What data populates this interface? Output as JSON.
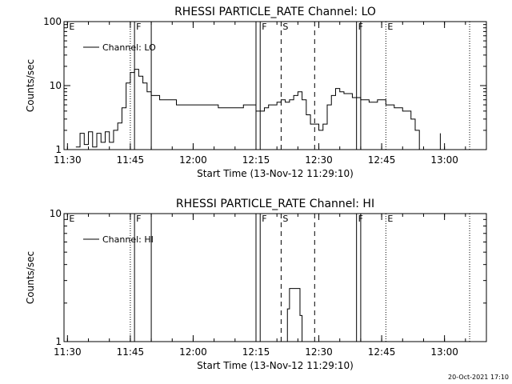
{
  "footer_timestamp": "20-Oct-2021 17:10",
  "chart_data": [
    {
      "type": "line",
      "title": "RHESSI PARTICLE_RATE Channel: LO",
      "xlabel": "Start Time (13-Nov-12 11:29:10)",
      "ylabel": "Counts/sec",
      "yscale": "log",
      "ylim": [
        1,
        100
      ],
      "xlim_minutes": [
        11.29,
        13.2
      ],
      "ytick_labels": [
        "1",
        "10",
        "100"
      ],
      "xtick_labels": [
        "11:30",
        "11:45",
        "12:00",
        "12:15",
        "12:30",
        "12:45",
        "13:00"
      ],
      "legend": {
        "label": "Channel: LO",
        "position": "top-left"
      },
      "markers": [
        {
          "label": "E",
          "time": "11:30",
          "style": "none"
        },
        {
          "label": "F",
          "time": "11:46",
          "style": "solid"
        },
        {
          "label": "F",
          "time": "12:16",
          "style": "solid"
        },
        {
          "label": "S",
          "time": "12:21",
          "style": "dashed"
        },
        {
          "label": "F",
          "time": "12:39",
          "style": "solid"
        },
        {
          "label": "E",
          "time": "12:46",
          "style": "dotted"
        }
      ],
      "extra_lines": [
        {
          "time": "11:45",
          "style": "dotted"
        },
        {
          "time": "11:50",
          "style": "solid"
        },
        {
          "time": "12:15",
          "style": "solid"
        },
        {
          "time": "12:29",
          "style": "dashed"
        },
        {
          "time": "12:40",
          "style": "solid"
        },
        {
          "time": "13:06",
          "style": "dotted"
        }
      ],
      "series": [
        {
          "name": "Channel: LO",
          "x": [
            "11:32",
            "11:33",
            "11:34",
            "11:35",
            "11:36",
            "11:37",
            "11:38",
            "11:39",
            "11:40",
            "11:41",
            "11:42",
            "11:43",
            "11:44",
            "11:45",
            "11:46",
            "11:47",
            "11:48",
            "11:49",
            "11:50",
            "11:51",
            "11:52",
            "11:54",
            "11:56",
            "11:58",
            "12:00",
            "12:02",
            "12:04",
            "12:06",
            "12:08",
            "12:10",
            "12:12",
            "12:14",
            "12:15",
            "12:16",
            "12:17",
            "12:18",
            "12:19",
            "12:20",
            "12:21",
            "12:22",
            "12:23",
            "12:24",
            "12:25",
            "12:26",
            "12:27",
            "12:28",
            "12:29",
            "12:30",
            "12:31",
            "12:32",
            "12:33",
            "12:34",
            "12:35",
            "12:36",
            "12:38",
            "12:40",
            "12:42",
            "12:44",
            "12:46",
            "12:48",
            "12:50",
            "12:52",
            "12:53",
            "12:54",
            "12:55",
            "12:58",
            "12:59"
          ],
          "y": [
            1.1,
            1.8,
            1.2,
            1.9,
            1.1,
            1.8,
            1.3,
            1.9,
            1.3,
            2.0,
            2.6,
            4.5,
            11,
            16,
            18,
            14,
            11,
            8,
            7,
            7,
            6,
            6,
            5,
            5,
            5,
            5,
            5,
            4.5,
            4.5,
            4.5,
            5,
            5,
            4,
            4,
            4.5,
            5,
            5,
            5.5,
            6,
            5.5,
            6,
            7,
            8,
            6,
            3.5,
            2.5,
            2.5,
            2,
            2.5,
            5,
            7,
            9,
            8,
            7.5,
            6.5,
            6,
            5.5,
            6,
            5,
            4.5,
            4,
            3,
            2,
            1,
            1,
            1,
            1.8
          ]
        }
      ]
    },
    {
      "type": "line",
      "title": "RHESSI PARTICLE_RATE Channel: HI",
      "xlabel": "Start Time (13-Nov-12 11:29:10)",
      "ylabel": "Counts/sec",
      "yscale": "log",
      "ylim": [
        1,
        10
      ],
      "xlim_minutes": [
        11.29,
        13.2
      ],
      "ytick_labels": [
        "1",
        "10"
      ],
      "xtick_labels": [
        "11:30",
        "11:45",
        "12:00",
        "12:15",
        "12:30",
        "12:45",
        "13:00"
      ],
      "legend": {
        "label": "Channel: HI",
        "position": "top-left"
      },
      "markers": [
        {
          "label": "E",
          "time": "11:30",
          "style": "none"
        },
        {
          "label": "F",
          "time": "11:46",
          "style": "solid"
        },
        {
          "label": "F",
          "time": "12:16",
          "style": "solid"
        },
        {
          "label": "S",
          "time": "12:21",
          "style": "dashed"
        },
        {
          "label": "F",
          "time": "12:39",
          "style": "solid"
        },
        {
          "label": "E",
          "time": "12:46",
          "style": "dotted"
        }
      ],
      "extra_lines": [
        {
          "time": "11:45",
          "style": "dotted"
        },
        {
          "time": "11:50",
          "style": "solid"
        },
        {
          "time": "12:15",
          "style": "solid"
        },
        {
          "time": "12:29",
          "style": "dashed"
        },
        {
          "time": "12:40",
          "style": "solid"
        },
        {
          "time": "13:06",
          "style": "dotted"
        }
      ],
      "series": [
        {
          "name": "Channel: HI",
          "x": [
            "12:22",
            "12:22.5",
            "12:23",
            "12:24",
            "12:25",
            "12:25.5",
            "12:26"
          ],
          "y": [
            1,
            1.8,
            2.6,
            2.6,
            2.6,
            1.6,
            1
          ],
          "segments_only_where_nonzero": true
        }
      ]
    }
  ]
}
